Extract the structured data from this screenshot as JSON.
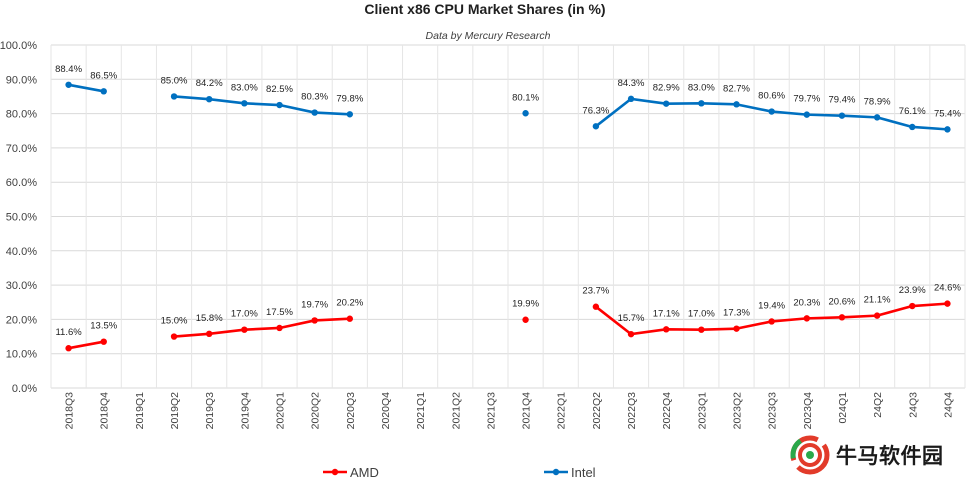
{
  "chart_data": {
    "type": "line",
    "title": "Client x86 CPU Market Shares (in %)",
    "subtitle": "Data by Mercury Research",
    "categories": [
      "2018Q3",
      "2018Q4",
      "2019Q1",
      "2019Q2",
      "2019Q3",
      "2019Q4",
      "2020Q1",
      "2020Q2",
      "2020Q3",
      "2020Q4",
      "2021Q1",
      "2021Q2",
      "2021Q3",
      "2021Q4",
      "2022Q1",
      "2022Q2",
      "2022Q3",
      "2022Q4",
      "2023Q1",
      "2023Q2",
      "2023Q3",
      "2023Q4",
      "2024Q1",
      "2024Q2",
      "2024Q3",
      "2024Q4"
    ],
    "visible_tick_labels": [
      "2018Q3",
      "2018Q4",
      "2019Q1",
      "2019Q2",
      "2019Q3",
      "2019Q4",
      "2020Q1",
      "2020Q2",
      "2020Q3",
      "2020Q4",
      "2021Q1",
      "2021Q2",
      "2021Q3",
      "2021Q4",
      "2022Q1",
      "2022Q2",
      "2022Q3",
      "2022Q4",
      "2023Q1",
      "2023Q2",
      "2023Q3",
      "2023Q4",
      "024Q1",
      "24Q2",
      "24Q3",
      "24Q4"
    ],
    "y_ticks": [
      "0.0%",
      "10.0%",
      "20.0%",
      "30.0%",
      "40.0%",
      "50.0%",
      "60.0%",
      "70.0%",
      "80.0%",
      "90.0%",
      "100.0%"
    ],
    "ylim": [
      0,
      100
    ],
    "grid": true,
    "legend_position": "bottom",
    "series": [
      {
        "name": "AMD",
        "color": "#ff0000",
        "values": [
          11.6,
          13.5,
          null,
          15.0,
          15.8,
          17.0,
          17.5,
          19.7,
          20.2,
          null,
          null,
          null,
          null,
          19.9,
          null,
          23.7,
          15.7,
          17.1,
          17.0,
          17.3,
          19.4,
          20.3,
          20.6,
          21.1,
          23.9,
          24.6
        ],
        "labels": [
          "11.6%",
          "13.5%",
          null,
          "15.0%",
          "15.8%",
          "17.0%",
          "17.5%",
          "19.7%",
          "20.2%",
          null,
          null,
          null,
          null,
          "19.9%",
          null,
          "23.7%",
          "15.7%",
          "17.1%",
          "17.0%",
          "17.3%",
          "19.4%",
          "20.3%",
          "20.6%",
          "21.1%",
          "23.9%",
          "24.6%"
        ]
      },
      {
        "name": "Intel",
        "color": "#0070c0",
        "values": [
          88.4,
          86.5,
          null,
          85.0,
          84.2,
          83.0,
          82.5,
          80.3,
          79.8,
          null,
          null,
          null,
          null,
          80.1,
          null,
          76.3,
          84.3,
          82.9,
          83.0,
          82.7,
          80.6,
          79.7,
          79.4,
          78.9,
          76.1,
          75.4
        ],
        "labels": [
          "88.4%",
          "86.5%",
          null,
          "85.0%",
          "84.2%",
          "83.0%",
          "82.5%",
          "80.3%",
          "79.8%",
          null,
          null,
          null,
          null,
          "80.1%",
          null,
          "76.3%",
          "84.3%",
          "82.9%",
          "83.0%",
          "82.7%",
          "80.6%",
          "79.7%",
          "79.4%",
          "78.9%",
          "76.1%",
          "75.4%"
        ]
      }
    ]
  },
  "watermark": {
    "text": "牛马软件园",
    "icon": "circular-logo-icon"
  }
}
